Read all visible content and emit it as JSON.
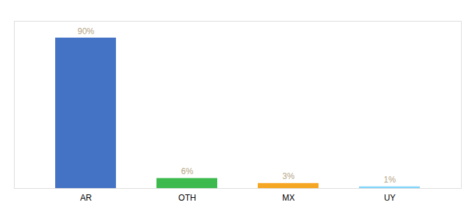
{
  "chart_data": {
    "type": "bar",
    "categories": [
      "AR",
      "OTH",
      "MX",
      "UY"
    ],
    "values": [
      90,
      6,
      3,
      1
    ],
    "value_labels": [
      "90%",
      "6%",
      "3%",
      "1%"
    ],
    "colors": [
      "#4472c4",
      "#3dba4e",
      "#f5a623",
      "#81d4fa"
    ],
    "ylim": [
      0,
      100
    ],
    "grid": false,
    "data_labels": true,
    "tick_labels": "x"
  }
}
